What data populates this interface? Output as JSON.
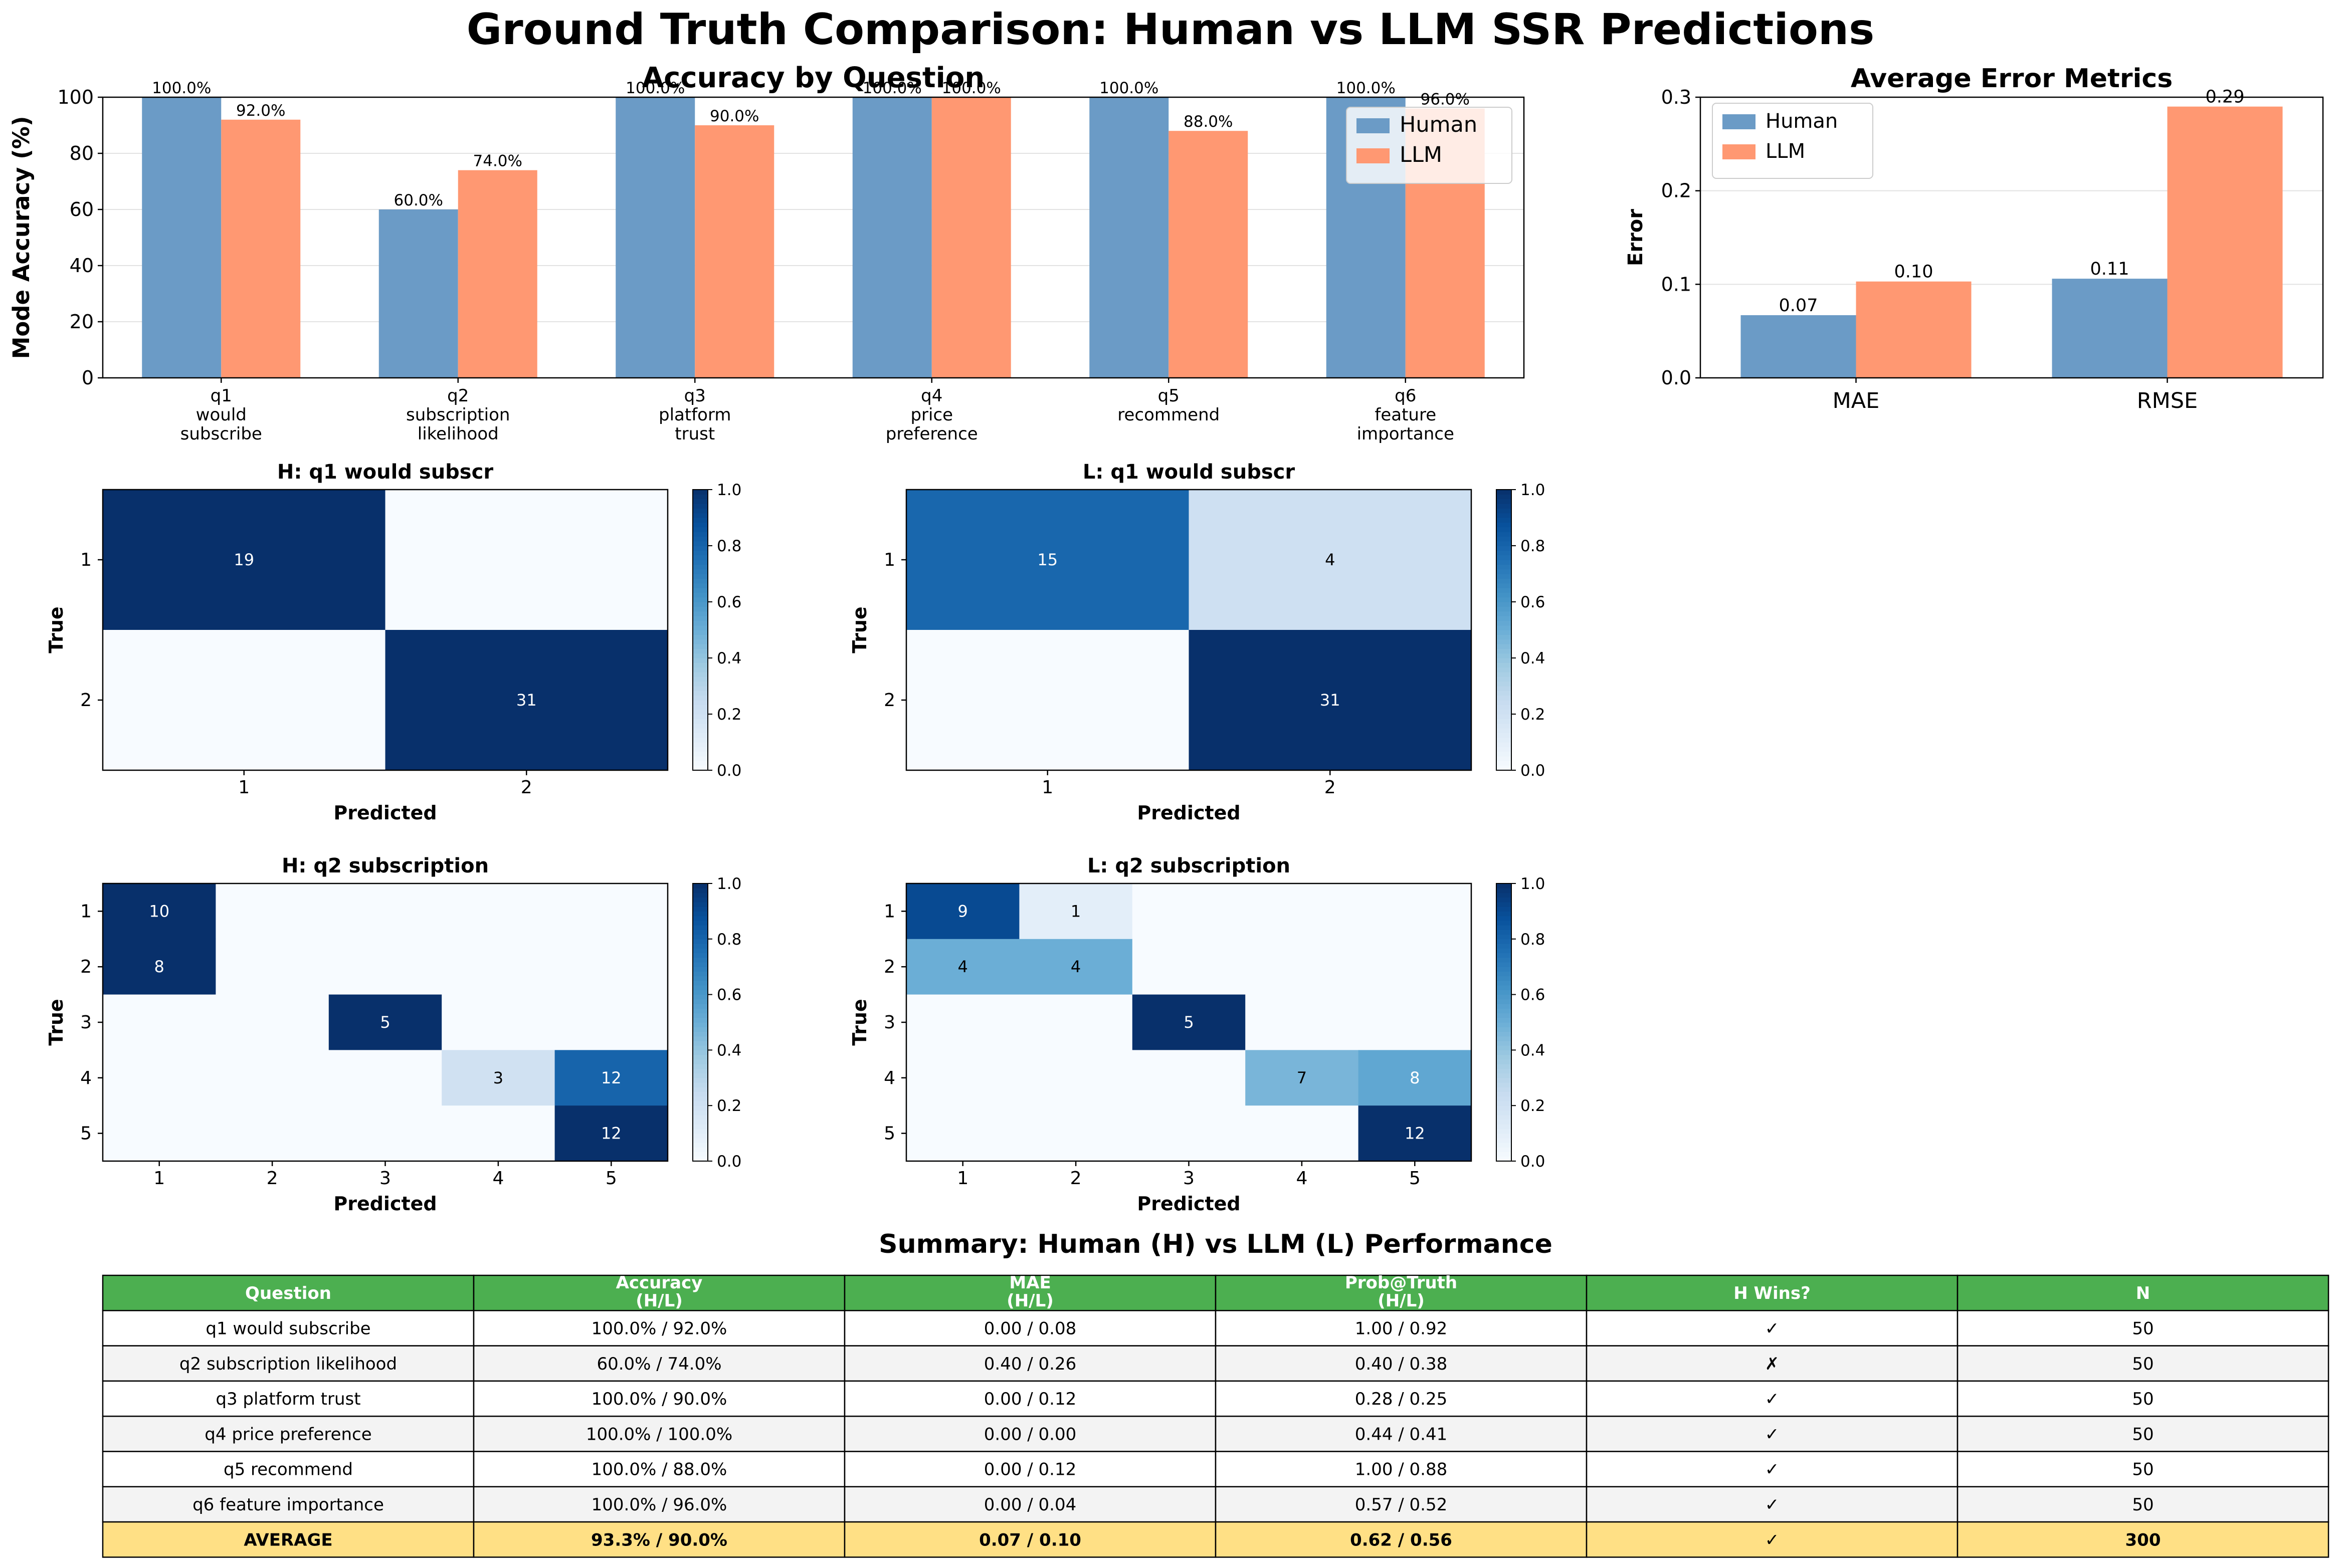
{
  "figure": {
    "title": "Ground Truth Comparison: Human vs LLM SSR Predictions"
  },
  "colors": {
    "human": "#6b9bc6",
    "llm": "#ff9872",
    "header_green": "#4caf50",
    "average_row": "#ffe085",
    "stripe": "#f3f3f3",
    "cm_low": "#f7fbff",
    "cm_high": "#08306b"
  },
  "chart_data": [
    {
      "id": "accuracy",
      "type": "bar",
      "title": "Accuracy by Question",
      "ylabel": "Mode Accuracy (%)",
      "xlabel": "",
      "ylim": [
        0,
        100
      ],
      "yticks": [
        "0",
        "20",
        "40",
        "60",
        "80",
        "100"
      ],
      "categories": [
        [
          "q1",
          "would",
          "subscribe"
        ],
        [
          "q2",
          "subscription",
          "likelihood"
        ],
        [
          "q3",
          "platform",
          "trust"
        ],
        [
          "q4",
          "price",
          "preference"
        ],
        [
          "q5",
          "recommend"
        ],
        [
          "q6",
          "feature",
          "importance"
        ]
      ],
      "series": [
        {
          "name": "Human",
          "values": [
            100.0,
            60.0,
            100.0,
            100.0,
            100.0,
            100.0
          ],
          "labels": [
            "100.0%",
            "60.0%",
            "100.0%",
            "100.0%",
            "100.0%",
            "100.0%"
          ]
        },
        {
          "name": "LLM",
          "values": [
            92.0,
            74.0,
            90.0,
            100.0,
            88.0,
            96.0
          ],
          "labels": [
            "92.0%",
            "74.0%",
            "90.0%",
            "100.0%",
            "88.0%",
            "96.0%"
          ]
        }
      ],
      "legend": "top-right",
      "grid": "y"
    },
    {
      "id": "errors",
      "type": "bar",
      "title": "Average Error Metrics",
      "ylabel": "Error",
      "xlabel": "",
      "ylim": [
        0,
        0.3
      ],
      "yticks": [
        "0.0",
        "0.1",
        "0.2",
        "0.3"
      ],
      "categories": [
        "MAE",
        "RMSE"
      ],
      "series": [
        {
          "name": "Human",
          "values": [
            0.067,
            0.106
          ],
          "labels": [
            "0.07",
            "0.11"
          ]
        },
        {
          "name": "LLM",
          "values": [
            0.103,
            0.29
          ],
          "labels": [
            "0.10",
            "0.29"
          ]
        }
      ],
      "legend": "top-left",
      "grid": "y"
    },
    {
      "id": "cm_h_q1",
      "type": "heatmap",
      "title": "H: q1 would subscr",
      "xlabel": "Predicted",
      "ylabel": "True",
      "labels": [
        "1",
        "2"
      ],
      "matrix": [
        [
          19,
          0
        ],
        [
          0,
          31
        ]
      ],
      "colorbar_ticks": [
        "0.0",
        "0.2",
        "0.4",
        "0.6",
        "0.8",
        "1.0"
      ],
      "value_range": [
        0,
        1
      ]
    },
    {
      "id": "cm_l_q1",
      "type": "heatmap",
      "title": "L: q1 would subscr",
      "xlabel": "Predicted",
      "ylabel": "True",
      "labels": [
        "1",
        "2"
      ],
      "matrix": [
        [
          15,
          4
        ],
        [
          0,
          31
        ]
      ],
      "colorbar_ticks": [
        "0.0",
        "0.2",
        "0.4",
        "0.6",
        "0.8",
        "1.0"
      ],
      "value_range": [
        0,
        1
      ]
    },
    {
      "id": "cm_h_q2",
      "type": "heatmap",
      "title": "H: q2 subscription",
      "xlabel": "Predicted",
      "ylabel": "True",
      "labels": [
        "1",
        "2",
        "3",
        "4",
        "5"
      ],
      "matrix": [
        [
          10,
          0,
          0,
          0,
          0
        ],
        [
          8,
          0,
          0,
          0,
          0
        ],
        [
          0,
          0,
          5,
          0,
          0
        ],
        [
          0,
          0,
          0,
          3,
          12
        ],
        [
          0,
          0,
          0,
          0,
          12
        ]
      ],
      "colorbar_ticks": [
        "0.0",
        "0.2",
        "0.4",
        "0.6",
        "0.8",
        "1.0"
      ],
      "value_range": [
        0,
        1
      ]
    },
    {
      "id": "cm_l_q2",
      "type": "heatmap",
      "title": "L: q2 subscription",
      "xlabel": "Predicted",
      "ylabel": "True",
      "labels": [
        "1",
        "2",
        "3",
        "4",
        "5"
      ],
      "matrix": [
        [
          9,
          1,
          0,
          0,
          0
        ],
        [
          4,
          4,
          0,
          0,
          0
        ],
        [
          0,
          0,
          5,
          0,
          0
        ],
        [
          0,
          0,
          0,
          7,
          8
        ],
        [
          0,
          0,
          0,
          0,
          12
        ]
      ],
      "colorbar_ticks": [
        "0.0",
        "0.2",
        "0.4",
        "0.6",
        "0.8",
        "1.0"
      ],
      "value_range": [
        0,
        1
      ]
    },
    {
      "id": "summary",
      "type": "table",
      "title": "Summary: Human (H) vs LLM (L) Performance",
      "columns": [
        [
          "Question"
        ],
        [
          "Accuracy",
          "(H/L)"
        ],
        [
          "MAE",
          "(H/L)"
        ],
        [
          "Prob@Truth",
          "(H/L)"
        ],
        [
          "H Wins?"
        ],
        [
          "N"
        ]
      ],
      "rows": [
        [
          "q1 would subscribe",
          "100.0% / 92.0%",
          "0.00 / 0.08",
          "1.00 / 0.92",
          "✓",
          "50"
        ],
        [
          "q2 subscription likelihood",
          "60.0% / 74.0%",
          "0.40 / 0.26",
          "0.40 / 0.38",
          "✗",
          "50"
        ],
        [
          "q3 platform trust",
          "100.0% / 90.0%",
          "0.00 / 0.12",
          "0.28 / 0.25",
          "✓",
          "50"
        ],
        [
          "q4 price preference",
          "100.0% / 100.0%",
          "0.00 / 0.00",
          "0.44 / 0.41",
          "✓",
          "50"
        ],
        [
          "q5 recommend",
          "100.0% / 88.0%",
          "0.00 / 0.12",
          "1.00 / 0.88",
          "✓",
          "50"
        ],
        [
          "q6 feature importance",
          "100.0% / 96.0%",
          "0.00 / 0.04",
          "0.57 / 0.52",
          "✓",
          "50"
        ]
      ],
      "average_row": [
        "AVERAGE",
        "93.3% / 90.0%",
        "0.07 / 0.10",
        "0.62 / 0.56",
        "✓",
        "300"
      ]
    }
  ]
}
